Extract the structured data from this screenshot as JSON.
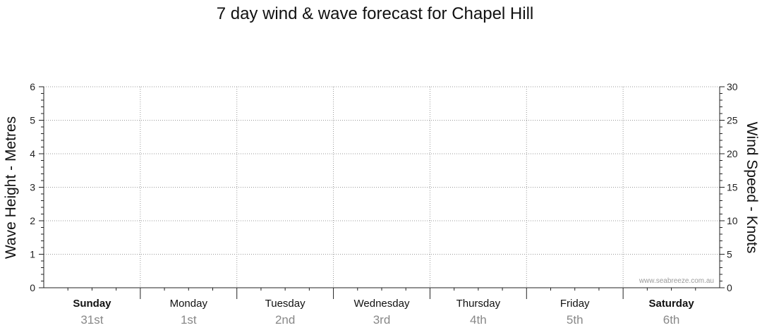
{
  "chart_data": {
    "type": "line",
    "title": "7 day wind & wave forecast for Chapel Hill",
    "ylabel_left": "Wave Height - Metres",
    "ylabel_right": "Wind Speed - Knots",
    "ylim_left": [
      0,
      6
    ],
    "ylim_right": [
      0,
      30
    ],
    "yticks_left": [
      "0",
      "1",
      "2",
      "3",
      "4",
      "5",
      "6"
    ],
    "yticks_right": [
      "0",
      "5",
      "10",
      "15",
      "20",
      "25",
      "30"
    ],
    "grid": true,
    "days": [
      {
        "name": "Sunday",
        "date": "31st",
        "bold": true
      },
      {
        "name": "Monday",
        "date": "1st",
        "bold": false
      },
      {
        "name": "Tuesday",
        "date": "2nd",
        "bold": false
      },
      {
        "name": "Wednesday",
        "date": "3rd",
        "bold": false
      },
      {
        "name": "Thursday",
        "date": "4th",
        "bold": false
      },
      {
        "name": "Friday",
        "date": "5th",
        "bold": false
      },
      {
        "name": "Saturday",
        "date": "6th",
        "bold": true
      }
    ],
    "series": [],
    "watermark": "www.seabreeze.com.au"
  },
  "colors": {
    "axis": "#222222",
    "grid": "#9a9a9a",
    "day_name": "#111111",
    "day_date": "#888888",
    "watermark": "#9a9a9a"
  }
}
